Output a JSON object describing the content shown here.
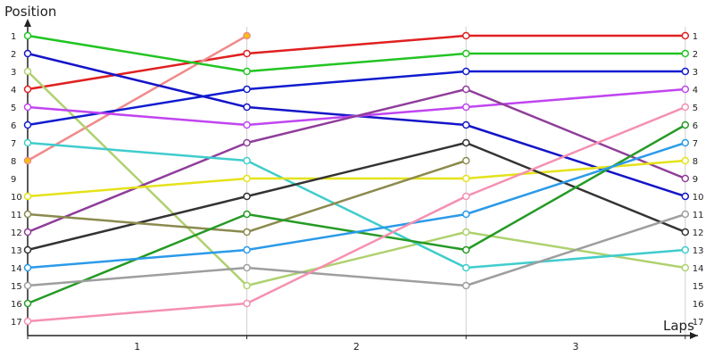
{
  "chart_data": {
    "type": "line",
    "ylabel": "Position",
    "xlabel": "Laps",
    "x": [
      0,
      1,
      2,
      3
    ],
    "x_tick_labels": [
      "1",
      "2",
      "3"
    ],
    "y_tick_labels": [
      "1",
      "2",
      "3",
      "4",
      "5",
      "6",
      "7",
      "8",
      "9",
      "10",
      "11",
      "12",
      "13",
      "14",
      "15",
      "16",
      "17"
    ],
    "ylim": [
      1,
      17
    ],
    "y_inverted": true,
    "grid_vertical": true,
    "series": [
      {
        "color": "#e02020",
        "values": [
          4,
          2,
          1,
          1
        ]
      },
      {
        "color": "#f08a8a",
        "values": [
          8,
          1,
          null,
          null
        ],
        "start_marker": "#f2c400"
      },
      {
        "color": "#22c422",
        "values": [
          1,
          3,
          2,
          2
        ]
      },
      {
        "color": "#1414c8",
        "values": [
          2,
          5,
          6,
          10
        ]
      },
      {
        "color": "#aed16e",
        "values": [
          3,
          15,
          12,
          14
        ]
      },
      {
        "color": "#0f1ccf",
        "values": [
          6,
          4,
          3,
          3
        ]
      },
      {
        "color": "#c045f0",
        "values": [
          5,
          6,
          5,
          4
        ]
      },
      {
        "color": "#8f3d9a",
        "values": [
          12,
          7,
          4,
          9
        ]
      },
      {
        "color": "#40cccc",
        "values": [
          7,
          8,
          14,
          13
        ]
      },
      {
        "color": "#e4e21a",
        "values": [
          10,
          9,
          9,
          8
        ]
      },
      {
        "color": "#333333",
        "values": [
          13,
          10,
          7,
          12
        ]
      },
      {
        "color": "#8b8a4e",
        "values": [
          11,
          12,
          8,
          null
        ]
      },
      {
        "color": "#259a25",
        "values": [
          16,
          11,
          13,
          6
        ]
      },
      {
        "color": "#2b9ae8",
        "values": [
          14,
          13,
          11,
          7
        ]
      },
      {
        "color": "#9e9e9e",
        "values": [
          15,
          14,
          15,
          11
        ]
      },
      {
        "color": "#f590b0",
        "values": [
          17,
          16,
          10,
          5
        ]
      }
    ]
  }
}
